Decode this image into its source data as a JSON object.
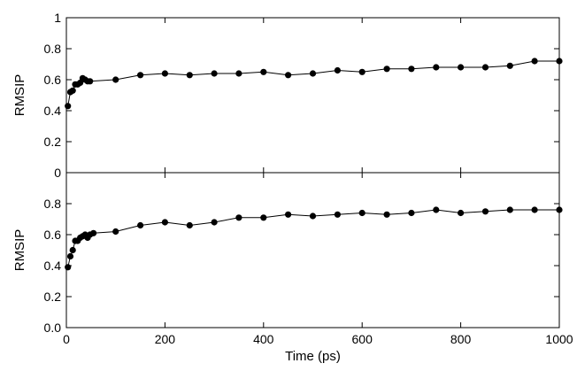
{
  "chart_data": [
    {
      "type": "line",
      "xlabel": "",
      "ylabel": "RMSIP",
      "xlim": [
        0,
        1000
      ],
      "ylim": [
        0,
        1
      ],
      "yticks": [
        "0",
        "0.2",
        "0.4",
        "0.6",
        "0.8",
        "1"
      ],
      "x": [
        3,
        8,
        13,
        18,
        23,
        28,
        33,
        38,
        43,
        48,
        100,
        150,
        200,
        250,
        300,
        350,
        400,
        450,
        500,
        550,
        600,
        650,
        700,
        750,
        800,
        850,
        900,
        950,
        1000
      ],
      "values": [
        0.43,
        0.52,
        0.53,
        0.57,
        0.57,
        0.58,
        0.61,
        0.6,
        0.59,
        0.59,
        0.6,
        0.63,
        0.64,
        0.63,
        0.64,
        0.64,
        0.65,
        0.63,
        0.64,
        0.66,
        0.65,
        0.67,
        0.67,
        0.68,
        0.68,
        0.68,
        0.69,
        0.72,
        0.72
      ],
      "color": "#000000",
      "grid": false
    },
    {
      "type": "line",
      "xlabel": "Time (ps)",
      "ylabel": "RMSIP",
      "xlim": [
        0,
        1000
      ],
      "ylim": [
        0,
        1
      ],
      "xticks": [
        "0",
        "200",
        "400",
        "600",
        "800",
        "1000"
      ],
      "yticks": [
        "0.0",
        "0.2",
        "0.4",
        "0.6",
        "0.8"
      ],
      "x": [
        3,
        8,
        13,
        18,
        23,
        28,
        33,
        38,
        43,
        48,
        55,
        100,
        150,
        200,
        250,
        300,
        350,
        400,
        450,
        500,
        550,
        600,
        650,
        700,
        750,
        800,
        850,
        900,
        950,
        1000
      ],
      "values": [
        0.39,
        0.46,
        0.5,
        0.56,
        0.56,
        0.58,
        0.59,
        0.6,
        0.58,
        0.6,
        0.61,
        0.62,
        0.66,
        0.68,
        0.66,
        0.68,
        0.71,
        0.71,
        0.73,
        0.72,
        0.73,
        0.74,
        0.73,
        0.74,
        0.76,
        0.74,
        0.75,
        0.76,
        0.76,
        0.76
      ],
      "color": "#000000",
      "grid": false
    }
  ]
}
